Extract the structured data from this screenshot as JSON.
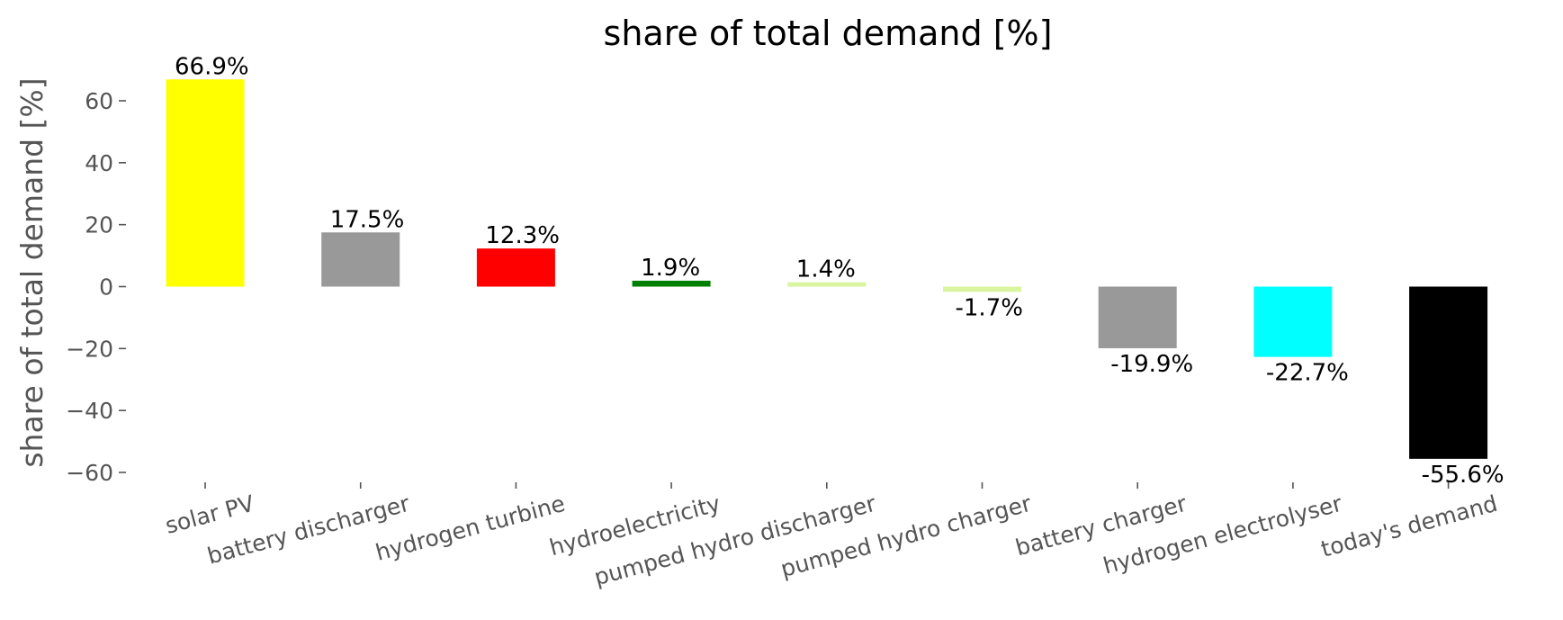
{
  "chart_data": {
    "type": "bar",
    "title": "share of total demand [%]",
    "ylabel": "share of total demand [%]",
    "xlabel": "",
    "ylim": [
      -65,
      70
    ],
    "yticks": [
      -60,
      -40,
      -20,
      0,
      20,
      40,
      60
    ],
    "ytick_labels": [
      "−60",
      "−40",
      "−20",
      "0",
      "20",
      "40",
      "60"
    ],
    "grid": false,
    "categories": [
      "solar PV",
      "battery discharger",
      "hydrogen turbine",
      "hydroelectricity",
      "pumped hydro discharger",
      "pumped hydro charger",
      "battery charger",
      "hydrogen electrolyser",
      "today's demand"
    ],
    "values": [
      66.9,
      17.5,
      12.3,
      1.9,
      1.4,
      -1.7,
      -19.9,
      -22.7,
      -55.6
    ],
    "labels": [
      "66.9%",
      "17.5%",
      "12.3%",
      "1.9%",
      "1.4%",
      "-1.7%",
      "-19.9%",
      "-22.7%",
      "-55.6%"
    ],
    "colors": [
      "#ffff00",
      "#999999",
      "#ff0000",
      "#008000",
      "#d9f5a0",
      "#d9f5a0",
      "#999999",
      "#00ffff",
      "#000000"
    ]
  }
}
